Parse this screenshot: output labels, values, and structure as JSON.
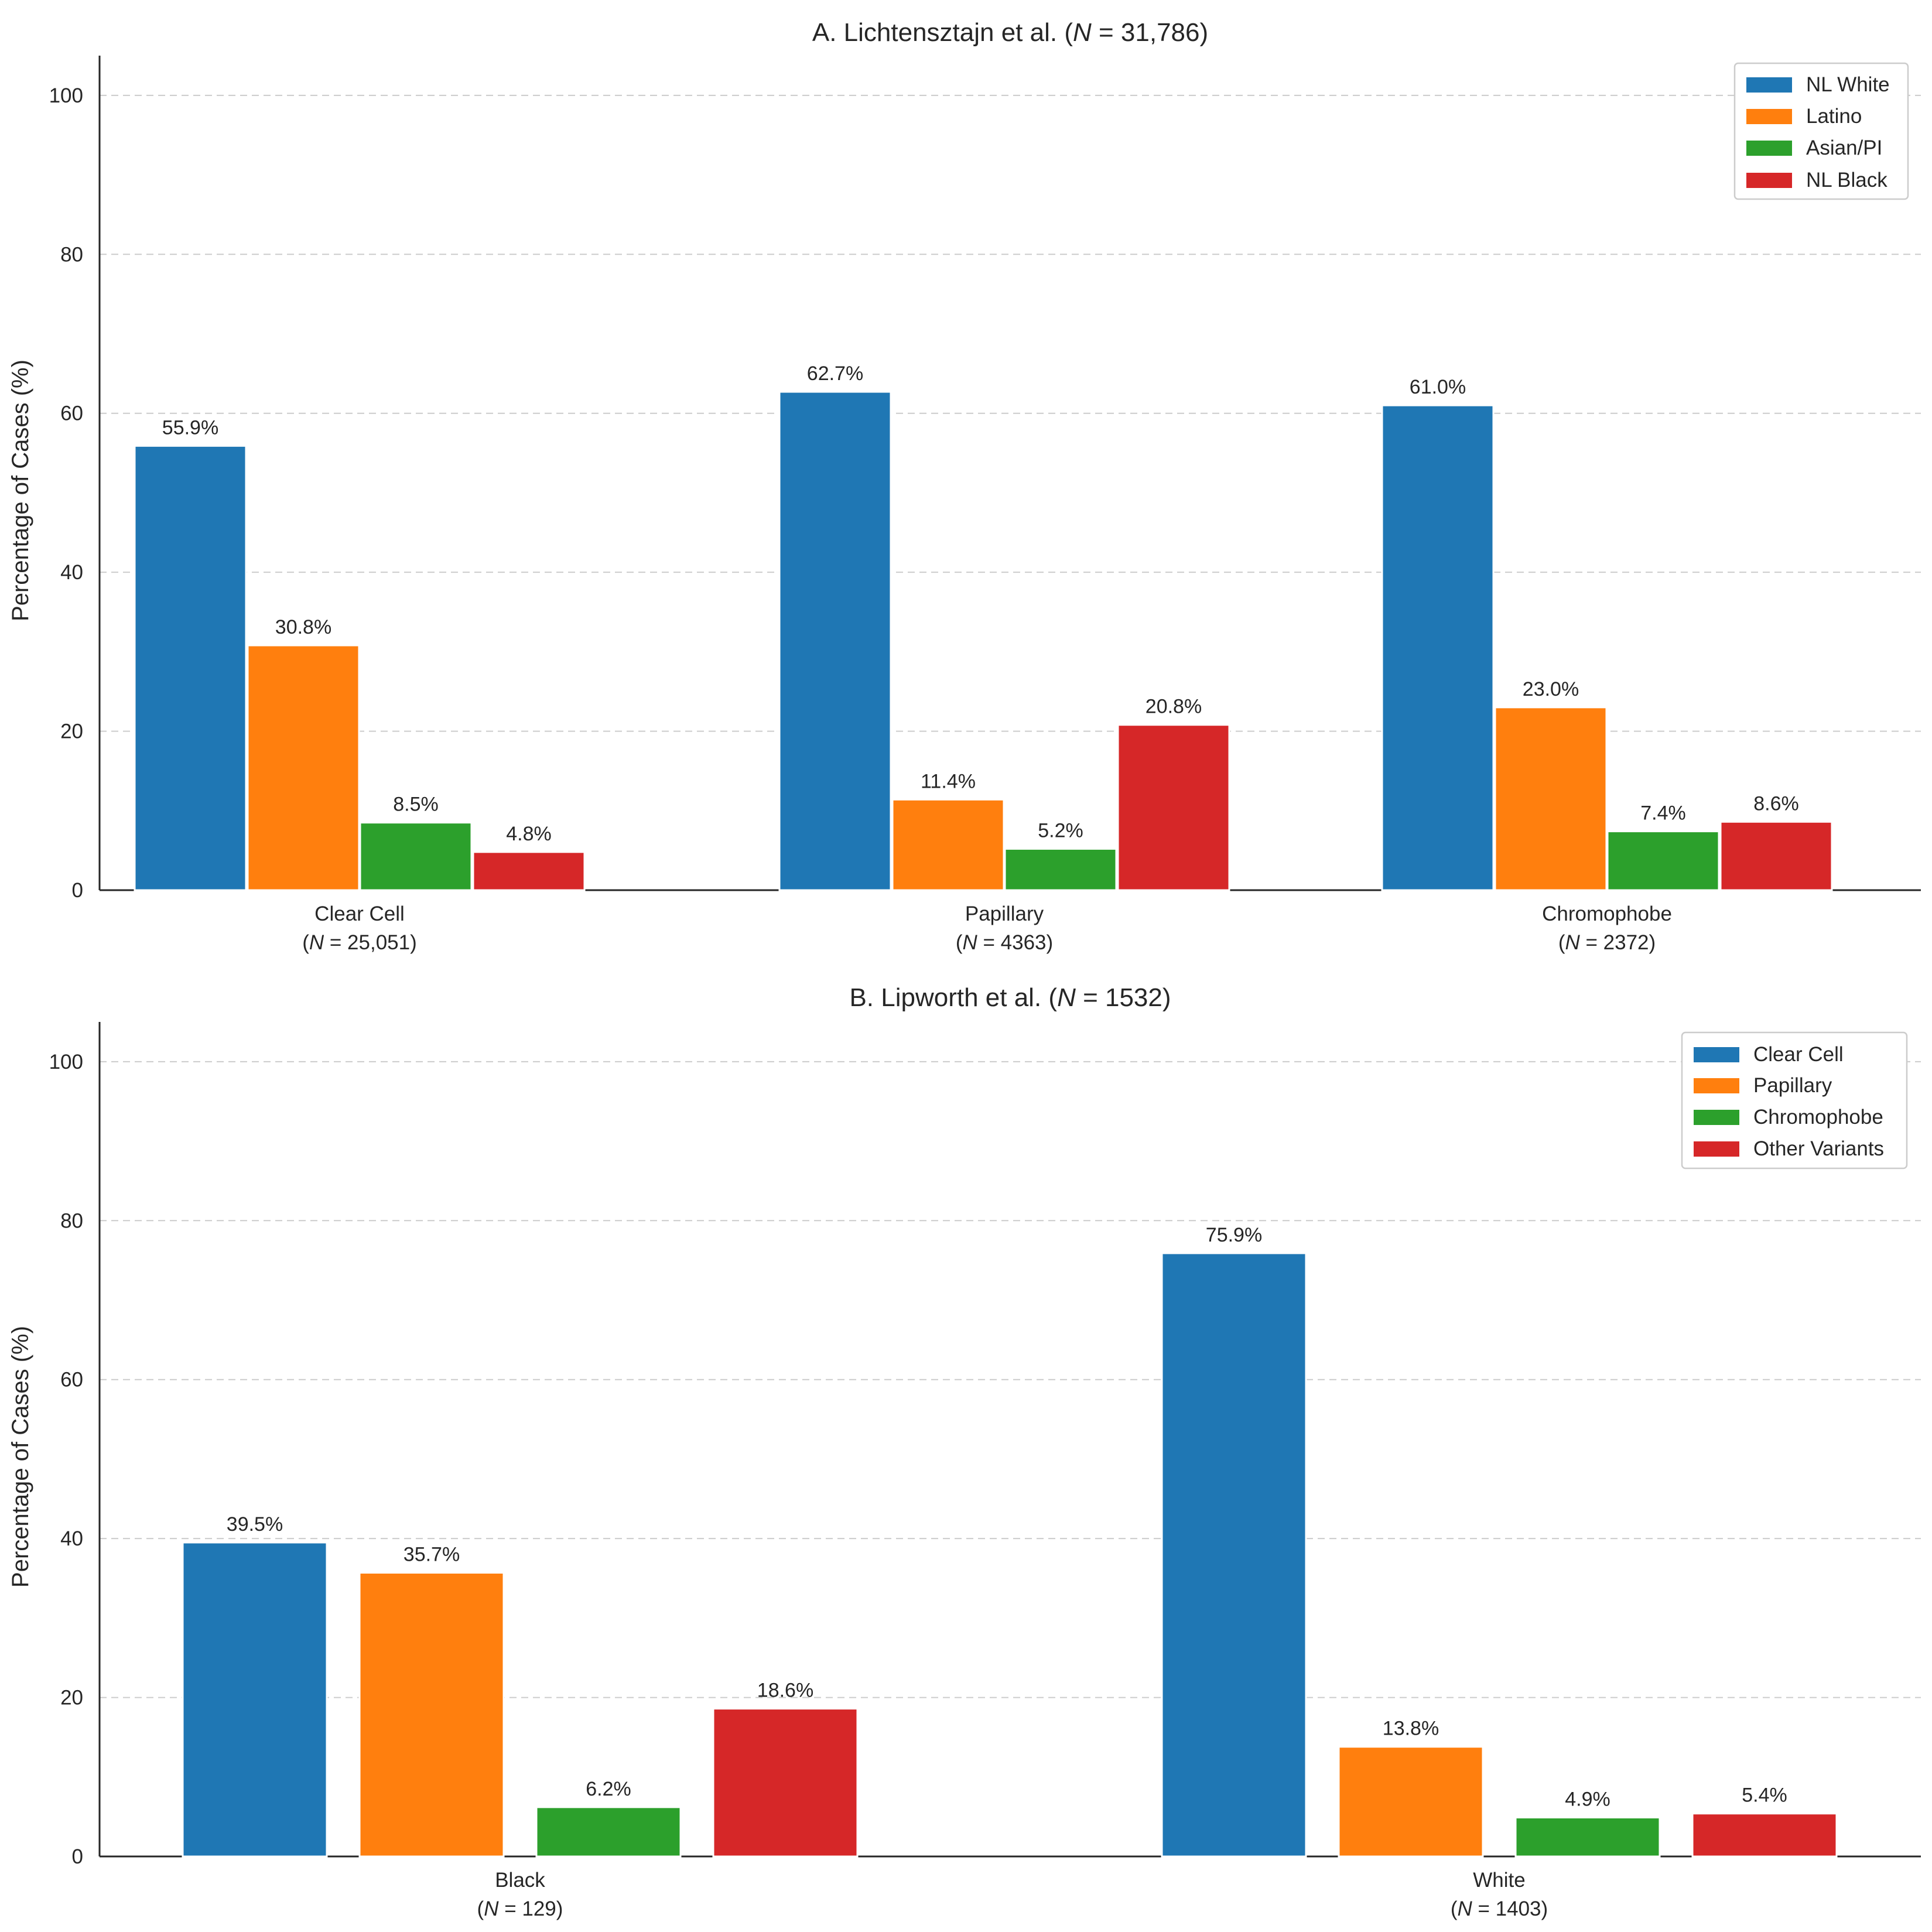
{
  "colors": {
    "blue": "#1f77b4",
    "orange": "#ff7f0e",
    "green": "#2ca02c",
    "red": "#d62728"
  },
  "chart_data": [
    {
      "type": "bar",
      "title": "A. Lichtensztajn et al. (N = 31,786)",
      "title_prefix": "A. Lichtensztajn et al. (",
      "title_n": "N",
      "title_suffix": " = 31,786)",
      "xlabel": "",
      "ylabel": "Percentage of Cases (%)",
      "ylim": [
        0,
        105
      ],
      "yticks": [
        0,
        20,
        40,
        60,
        80,
        100
      ],
      "grid": true,
      "legend_position": "top-right",
      "categories": [
        {
          "name": "Clear Cell",
          "n_prefix": "(",
          "n_symbol": "N",
          "n_suffix": " = 25,051)"
        },
        {
          "name": "Papillary",
          "n_prefix": "(",
          "n_symbol": "N",
          "n_suffix": " = 4363)"
        },
        {
          "name": "Chromophobe",
          "n_prefix": "(",
          "n_symbol": "N",
          "n_suffix": " = 2372)"
        }
      ],
      "series": [
        {
          "name": "NL White",
          "color": "#1f77b4",
          "values": [
            55.9,
            62.7,
            61.0
          ],
          "labels": [
            "55.9%",
            "62.7%",
            "61.0%"
          ]
        },
        {
          "name": "Latino",
          "color": "#ff7f0e",
          "values": [
            30.8,
            11.4,
            23.0
          ],
          "labels": [
            "30.8%",
            "11.4%",
            "23.0%"
          ]
        },
        {
          "name": "Asian/PI",
          "color": "#2ca02c",
          "values": [
            8.5,
            5.2,
            7.4
          ],
          "labels": [
            "8.5%",
            "5.2%",
            "7.4%"
          ]
        },
        {
          "name": "NL Black",
          "color": "#d62728",
          "values": [
            4.8,
            20.8,
            8.6
          ],
          "labels": [
            "4.8%",
            "20.8%",
            "8.6%"
          ]
        }
      ]
    },
    {
      "type": "bar",
      "title": "B. Lipworth et al. (N = 1532)",
      "title_prefix": "B. Lipworth et al. (",
      "title_n": "N",
      "title_suffix": " = 1532)",
      "xlabel": "",
      "ylabel": "Percentage of Cases (%)",
      "ylim": [
        0,
        105
      ],
      "yticks": [
        0,
        20,
        40,
        60,
        80,
        100
      ],
      "grid": true,
      "legend_position": "top-right",
      "categories": [
        {
          "name": "Black",
          "n_prefix": "(",
          "n_symbol": "N",
          "n_suffix": " = 129)"
        },
        {
          "name": "White",
          "n_prefix": "(",
          "n_symbol": "N",
          "n_suffix": " = 1403)"
        }
      ],
      "series": [
        {
          "name": "Clear Cell",
          "color": "#1f77b4",
          "values": [
            39.5,
            75.9
          ],
          "labels": [
            "39.5%",
            "75.9%"
          ]
        },
        {
          "name": "Papillary",
          "color": "#ff7f0e",
          "values": [
            35.7,
            13.8
          ],
          "labels": [
            "35.7%",
            "13.8%"
          ]
        },
        {
          "name": "Chromophobe",
          "color": "#2ca02c",
          "values": [
            6.2,
            4.9
          ],
          "labels": [
            "6.2%",
            "4.9%"
          ]
        },
        {
          "name": "Other Variants",
          "color": "#d62728",
          "values": [
            18.6,
            5.4
          ],
          "labels": [
            "18.6%",
            "5.4%"
          ]
        }
      ]
    }
  ]
}
